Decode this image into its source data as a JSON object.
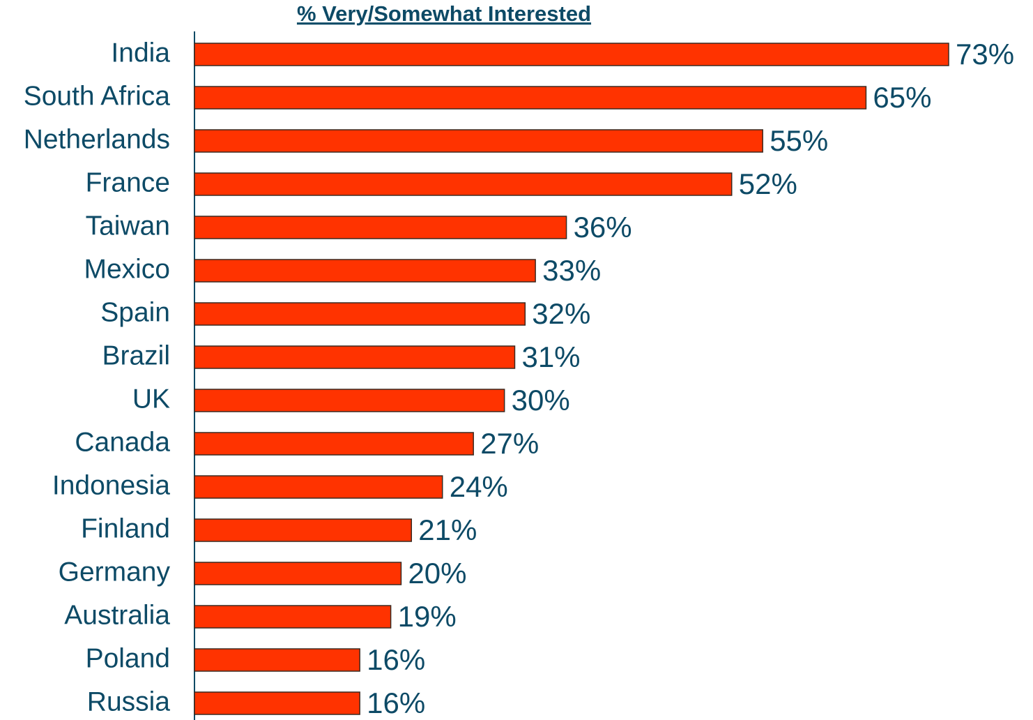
{
  "chart_data": {
    "type": "bar",
    "orientation": "horizontal",
    "title": "% Very/Somewhat Interested",
    "categories": [
      "India",
      "South Africa",
      "Netherlands",
      "France",
      "Taiwan",
      "Mexico",
      "Spain",
      "Brazil",
      "UK",
      "Canada",
      "Indonesia",
      "Finland",
      "Germany",
      "Australia",
      "Poland",
      "Russia"
    ],
    "values": [
      73,
      65,
      55,
      52,
      36,
      33,
      32,
      31,
      30,
      27,
      24,
      21,
      20,
      19,
      16,
      16
    ],
    "value_labels": [
      "73%",
      "65%",
      "55%",
      "52%",
      "36%",
      "33%",
      "32%",
      "31%",
      "30%",
      "27%",
      "24%",
      "21%",
      "20%",
      "19%",
      "16%",
      "16%"
    ],
    "color": "#ff3300"
  }
}
